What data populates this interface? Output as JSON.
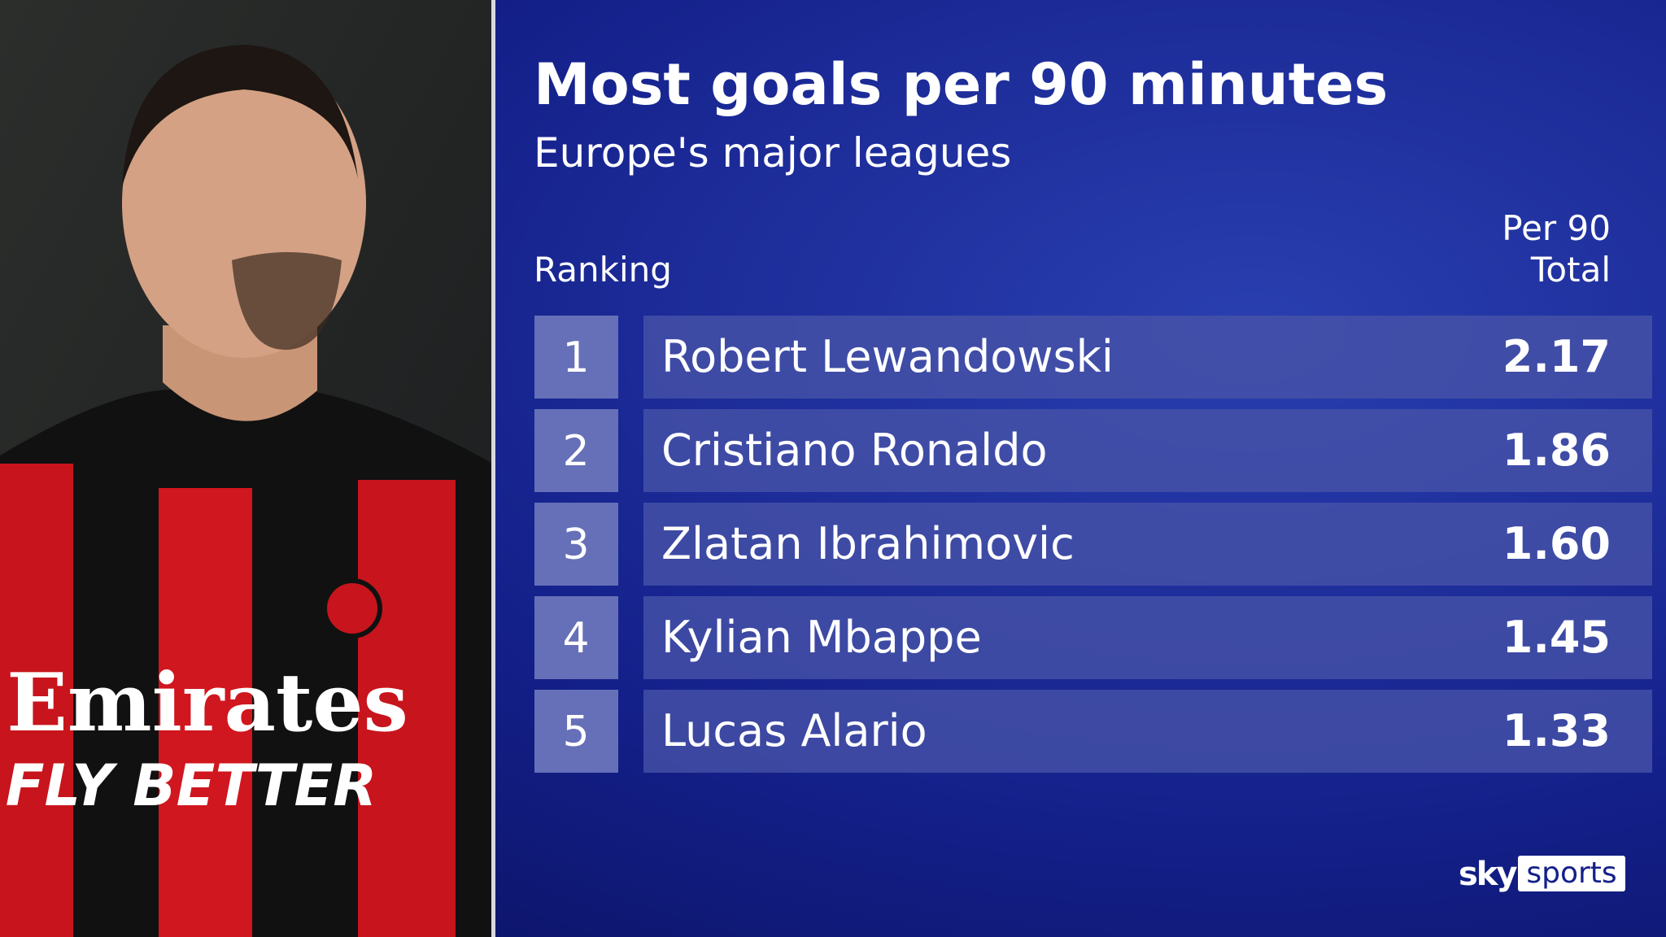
{
  "header": {
    "title": "Most goals per 90 minutes",
    "subtitle": "Europe's major leagues"
  },
  "table": {
    "columns": {
      "ranking": "Ranking",
      "value_line1": "Per 90",
      "value_line2": "Total"
    },
    "rows": [
      {
        "rank": "1",
        "name": "Robert Lewandowski",
        "value": "2.17"
      },
      {
        "rank": "2",
        "name": "Cristiano Ronaldo",
        "value": "1.86"
      },
      {
        "rank": "3",
        "name": "Zlatan Ibrahimovic",
        "value": "1.60"
      },
      {
        "rank": "4",
        "name": "Kylian Mbappe",
        "value": "1.45"
      },
      {
        "rank": "5",
        "name": "Lucas Alario",
        "value": "1.33"
      }
    ]
  },
  "photo": {
    "shirt_sponsor": "Emirates",
    "shirt_slogan": "FLY BETTER"
  },
  "logo": {
    "brand": "sky",
    "product": "sports"
  }
}
